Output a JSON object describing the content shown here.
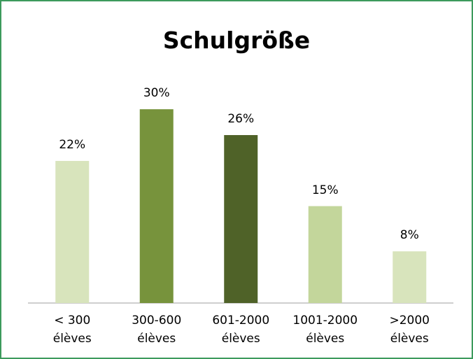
{
  "chart_data": {
    "type": "bar",
    "title": "Schulgröße",
    "categories": [
      "< 300\nélèves",
      "300-600\nélèves",
      "601-2000\nélèves",
      "1001-2000\nélèves",
      ">2000\nélèves"
    ],
    "values": [
      22,
      30,
      26,
      15,
      8
    ],
    "value_labels": [
      "22%",
      "30%",
      "26%",
      "15%",
      "8%"
    ],
    "colors": [
      "#d8e4bc",
      "#77933c",
      "#4f6228",
      "#c3d69b",
      "#d8e4bc"
    ]
  }
}
